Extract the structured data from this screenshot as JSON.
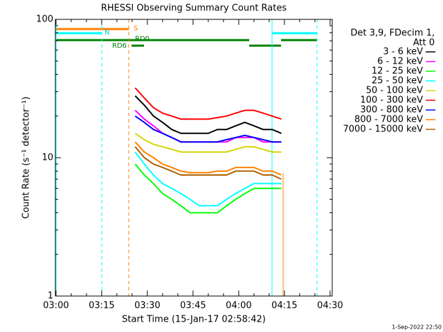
{
  "chart_data": {
    "type": "line",
    "title": "RHESSI Observing Summary Count Rates",
    "xlabel": "Start Time (15-Jan-17 02:58:42)",
    "ylabel": "Count Rate (s⁻¹ detector⁻¹)",
    "footer": "1-Sep-2022 22:50",
    "legend_header": [
      "Det 3,9, FDecim 1,",
      "Att 0"
    ],
    "legend": "right",
    "log_y": true,
    "annotations": [
      "S",
      "N",
      "RD0",
      "RD6"
    ],
    "xlim": [
      179.8,
      270.7
    ],
    "ylim": [
      1,
      100
    ],
    "xticks": [
      {
        "value": 180,
        "label": "03:00"
      },
      {
        "value": 195,
        "label": "03:15"
      },
      {
        "value": 210,
        "label": "03:30"
      },
      {
        "value": 225,
        "label": "03:45"
      },
      {
        "value": 240,
        "label": "04:00"
      },
      {
        "value": 255,
        "label": "04:15"
      },
      {
        "value": 270,
        "label": "04:30"
      }
    ],
    "xminorticks": [
      185,
      190,
      200,
      205,
      215,
      220,
      230,
      235,
      245,
      250,
      260,
      265
    ],
    "yticks": [
      1,
      10,
      100
    ],
    "yminorticks": [
      2,
      3,
      4,
      5,
      6,
      7,
      8,
      9,
      20,
      30,
      40,
      50,
      60,
      70,
      80,
      90
    ],
    "x": [
      206,
      209,
      212,
      215,
      218,
      221,
      224,
      227,
      230,
      233,
      236,
      239,
      242,
      245,
      248,
      251,
      254
    ],
    "series": [
      {
        "name": "3 - 6 keV",
        "color": "#000000",
        "values": [
          28,
          24,
          20,
          18,
          16,
          15,
          15,
          15,
          15,
          16,
          16,
          17,
          18,
          17,
          16,
          16,
          15
        ]
      },
      {
        "name": "6 - 12 keV",
        "color": "#ff00ff",
        "values": [
          22,
          19,
          17,
          15,
          14,
          13,
          13,
          13,
          13,
          13,
          13,
          14,
          14,
          14,
          13,
          13,
          13
        ]
      },
      {
        "name": "12 - 25 keV",
        "color": "#00ff00",
        "values": [
          9,
          7.5,
          6.5,
          5.5,
          5,
          4.5,
          4,
          4,
          4,
          4,
          4.5,
          5,
          5.5,
          6,
          6,
          6,
          6
        ]
      },
      {
        "name": "25 - 50 keV",
        "color": "#00ffff",
        "values": [
          11,
          9,
          7.5,
          6.5,
          6,
          5.5,
          5,
          4.5,
          4.5,
          4.5,
          5,
          5.5,
          6,
          6.5,
          6.5,
          6.5,
          6.5
        ]
      },
      {
        "name": "50 - 100 keV",
        "color": "#d4d400",
        "values": [
          15,
          13.5,
          12.5,
          12,
          11.5,
          11,
          11,
          11,
          11,
          11,
          11,
          11.5,
          12,
          12,
          11.5,
          11,
          11
        ]
      },
      {
        "name": "100 - 300 keV",
        "color": "#ff0000",
        "values": [
          32,
          27,
          23,
          21,
          20,
          19,
          19,
          19,
          19,
          19.5,
          20,
          21,
          22,
          22,
          21,
          20,
          19
        ]
      },
      {
        "name": "300 - 800 keV",
        "color": "#0000ff",
        "values": [
          20,
          18,
          16,
          15,
          14,
          13,
          13,
          13,
          13,
          13,
          13.5,
          14,
          14.5,
          14,
          13.5,
          13,
          13
        ]
      },
      {
        "name": "800 - 7000 keV",
        "color": "#ff8000",
        "values": [
          13,
          11,
          10,
          9,
          8.5,
          8,
          7.8,
          7.8,
          7.8,
          8,
          8,
          8.5,
          8.5,
          8.5,
          8,
          8,
          7.5
        ]
      },
      {
        "name": "7000 - 15000 keV",
        "color": "#b06000",
        "values": [
          12,
          10,
          9,
          8.5,
          8,
          7.5,
          7.5,
          7.5,
          7.5,
          7.5,
          7.5,
          8,
          8,
          8,
          7.5,
          7.5,
          7
        ]
      }
    ]
  }
}
